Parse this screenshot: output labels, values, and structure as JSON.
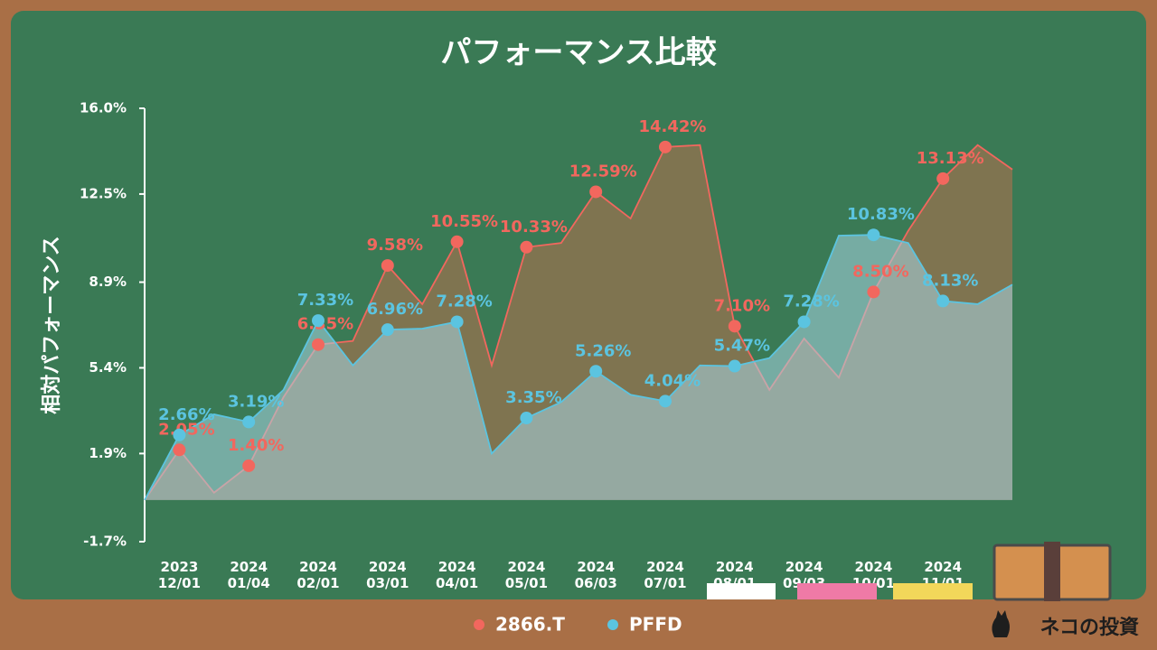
{
  "chart_data": {
    "type": "area",
    "title": "パフォーマンス比較",
    "y_label": "相対パフォーマンス",
    "source": "ネコの投資",
    "categories": [
      null,
      "2023\n12/01",
      null,
      "2024\n01/04",
      null,
      "2024\n02/01",
      null,
      "2024\n03/01",
      null,
      "2024\n04/01",
      null,
      "2024\n05/01",
      null,
      "2024\n06/03",
      null,
      "2024\n07/01",
      null,
      "2024\n08/01",
      null,
      "2024\n09/03",
      null,
      "2024\n10/01",
      null,
      "2024\n11/01",
      null,
      null
    ],
    "series": [
      {
        "name": "2866.T",
        "color": "#f2675e",
        "fill": "#b8704c",
        "values": [
          0,
          2.05,
          0.3,
          1.4,
          4.2,
          6.35,
          6.5,
          9.58,
          8.0,
          10.55,
          5.5,
          10.33,
          10.5,
          12.59,
          11.5,
          14.42,
          14.5,
          7.1,
          4.5,
          6.6,
          5.0,
          8.5,
          11.0,
          13.13,
          14.5,
          13.5
        ],
        "value_labels": [
          null,
          "2.05%",
          null,
          "1.40%",
          null,
          "6.35%",
          null,
          "9.58%",
          null,
          "10.55%",
          null,
          "10.33%",
          null,
          "12.59%",
          null,
          "14.42%",
          null,
          "7.10%",
          null,
          null,
          null,
          "8.50%",
          null,
          "13.13%",
          null,
          null
        ]
      },
      {
        "name": "PFFD",
        "color": "#5bc4e0",
        "fill": "#a8d6e3",
        "values": [
          0,
          2.66,
          3.5,
          3.19,
          4.5,
          7.33,
          5.5,
          6.96,
          7.0,
          7.28,
          1.9,
          3.35,
          4.0,
          5.26,
          4.3,
          4.04,
          5.5,
          5.47,
          5.8,
          7.28,
          10.8,
          10.83,
          10.5,
          8.13,
          8.0,
          8.8
        ],
        "value_labels": [
          null,
          "2.66%",
          null,
          "3.19%",
          null,
          "7.33%",
          null,
          "6.96%",
          null,
          "7.28%",
          null,
          "3.35%",
          null,
          "5.26%",
          null,
          "4.04%",
          null,
          "5.47%",
          null,
          "7.28%",
          null,
          "10.83%",
          null,
          "8.13%",
          null,
          null
        ]
      }
    ],
    "ylim": [
      -1.7,
      16.0
    ],
    "yticks": [
      {
        "value": 16.0,
        "label": "16.0%"
      },
      {
        "value": 12.5,
        "label": "12.5%"
      },
      {
        "value": 8.9,
        "label": "8.9%"
      },
      {
        "value": 5.4,
        "label": "5.4%"
      },
      {
        "value": 1.9,
        "label": "1.9%"
      },
      {
        "value": -1.7,
        "label": "-1.7%"
      }
    ],
    "legend": "bottom"
  }
}
